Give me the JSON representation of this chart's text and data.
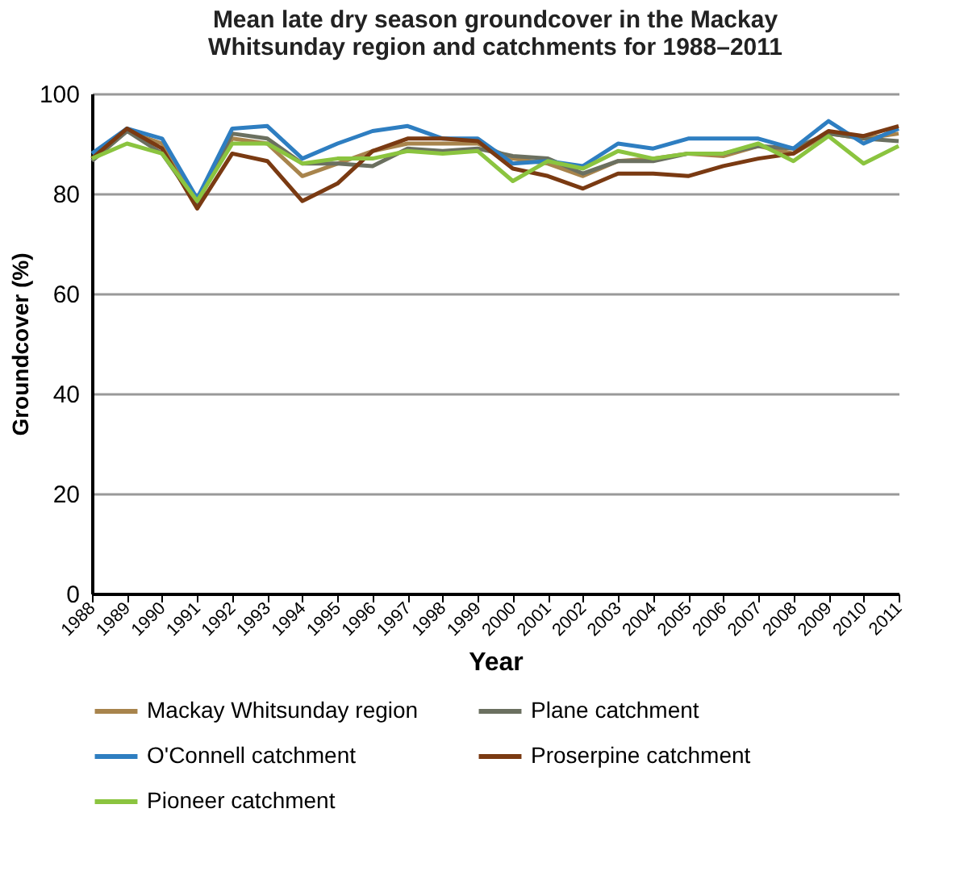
{
  "chart_data": {
    "type": "line",
    "title": "Mean late dry season groundcover in the Mackay Whitsunday region and catchments for 1988–2011",
    "xlabel": "Year",
    "ylabel": "Groundcover (%)",
    "categories": [
      "1988",
      "1989",
      "1990",
      "1991",
      "1992",
      "1993",
      "1994",
      "1995",
      "1996",
      "1997",
      "1998",
      "1999",
      "2000",
      "2001",
      "2002",
      "2003",
      "2004",
      "2005",
      "2006",
      "2007",
      "2008",
      "2009",
      "2010",
      "2011"
    ],
    "ylim": [
      0,
      100
    ],
    "yticks": [
      0,
      20,
      40,
      60,
      80,
      100
    ],
    "grid": "y",
    "legend": "bottom",
    "series": [
      {
        "name": "Mackay Whitsunday region",
        "color": "#a8844c",
        "values": [
          87,
          92.5,
          90,
          78.5,
          91,
          90,
          83.5,
          86,
          88.5,
          90,
          90,
          90,
          87,
          86,
          83.5,
          86.5,
          87,
          88,
          87.5,
          89.5,
          88,
          92,
          91,
          92
        ]
      },
      {
        "name": "Plane catchment",
        "color": "#6b7060",
        "values": [
          86.5,
          92.5,
          88,
          78,
          92,
          91,
          86,
          86,
          85.5,
          89,
          88.5,
          89,
          87.5,
          87,
          84,
          86.5,
          86.5,
          88,
          88,
          89.5,
          89,
          92,
          91,
          90.5
        ]
      },
      {
        "name": "O'Connell catchment",
        "color": "#2e7ec1",
        "values": [
          88,
          93,
          91,
          79,
          93,
          93.5,
          87,
          90,
          92.5,
          93.5,
          91,
          91,
          86,
          86.5,
          85.5,
          90,
          89,
          91,
          91,
          91,
          89,
          94.5,
          90,
          93
        ]
      },
      {
        "name": "Proserpine catchment",
        "color": "#7a3a12",
        "values": [
          87,
          93,
          89,
          77,
          88,
          86.5,
          78.5,
          82,
          88.5,
          91,
          91,
          90.5,
          85,
          83.5,
          81,
          84,
          84,
          83.5,
          85.5,
          87,
          88,
          92.5,
          91.5,
          93.5
        ]
      },
      {
        "name": "Pioneer catchment",
        "color": "#8bc43f",
        "values": [
          87,
          90,
          88,
          78.5,
          90,
          90,
          86,
          87,
          87,
          88.5,
          88,
          88.5,
          82.5,
          86.5,
          85,
          88.5,
          87,
          88,
          88,
          90,
          86.5,
          91.5,
          86,
          89.5
        ]
      }
    ]
  }
}
